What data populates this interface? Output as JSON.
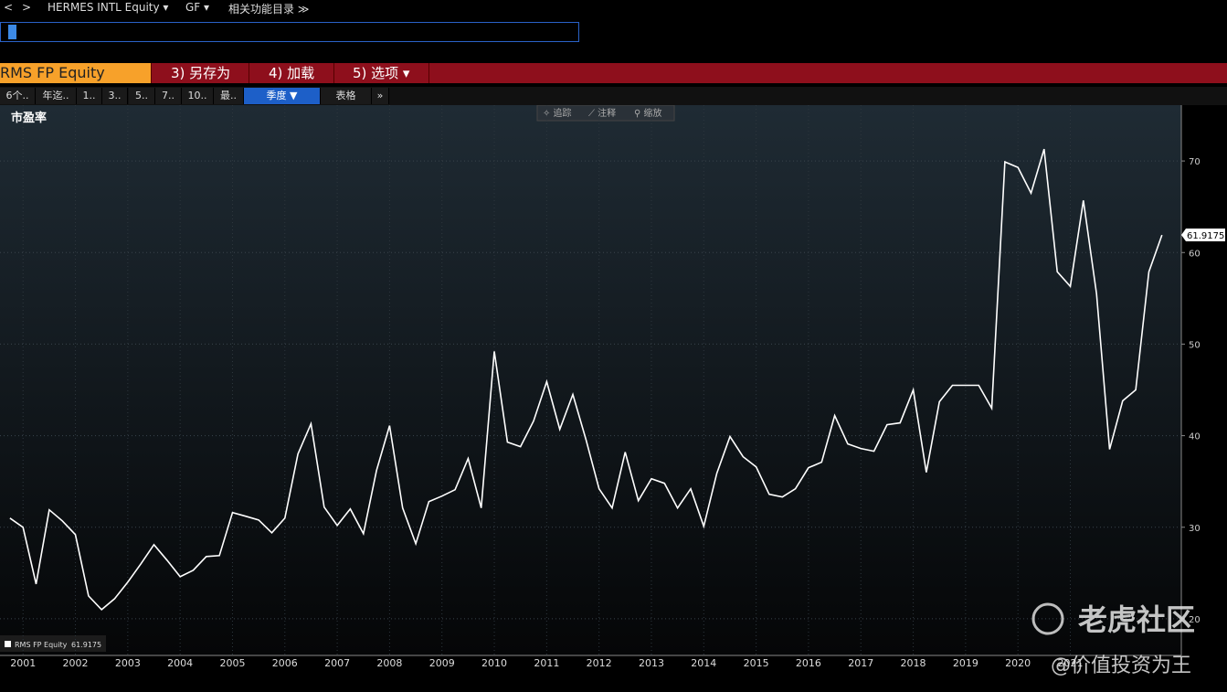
{
  "topbar": {
    "back": "<",
    "forward": ">",
    "security": "HERMES INTL Equity ▾",
    "function": "GF ▾",
    "menu": "相关功能目录 ≫"
  },
  "tabs": {
    "ticker": "RMS FP Equity",
    "items": [
      "3) 另存为",
      "4) 加载",
      "5) 选项 ▾"
    ]
  },
  "periods": {
    "items": [
      "6个..",
      "年迄..",
      "1..",
      "3..",
      "5..",
      "7..",
      "10..",
      "最.."
    ],
    "frequency": "季度 ▼",
    "table": "表格",
    "more": "»"
  },
  "tools": [
    "✧ 追踪",
    "⟋ 注释",
    "⚲ 缩放"
  ],
  "watermark": {
    "logo": "老虎社区",
    "author": "@价值投资为王"
  },
  "chart_data": {
    "type": "line",
    "title": "市盈率",
    "x": [
      2001.25,
      2001.5,
      2001.75,
      2002,
      2002.25,
      2002.5,
      2002.75,
      2003,
      2003.25,
      2003.5,
      2003.75,
      2004,
      2004.25,
      2004.5,
      2004.75,
      2005,
      2005.25,
      2005.5,
      2005.75,
      2006,
      2006.25,
      2006.5,
      2006.75,
      2007,
      2007.25,
      2007.5,
      2007.75,
      2008,
      2008.25,
      2008.5,
      2008.75,
      2009,
      2009.25,
      2009.5,
      2009.75,
      2010,
      2010.25,
      2010.5,
      2010.75,
      2011,
      2011.25,
      2011.5,
      2011.75,
      2012,
      2012.25,
      2012.5,
      2012.75,
      2013,
      2013.25,
      2013.5,
      2013.75,
      2014,
      2014.25,
      2014.5,
      2014.75,
      2015,
      2015.25,
      2015.5,
      2015.75,
      2016,
      2016.25,
      2016.5,
      2016.75,
      2017,
      2017.25,
      2017.5,
      2017.75,
      2018,
      2018.25,
      2018.5,
      2018.75,
      2019,
      2019.25,
      2019.5,
      2019.75,
      2020,
      2020.25,
      2020.5,
      2020.75,
      2021,
      2021.25,
      2021.5,
      2021.75,
      2022,
      2022.25,
      2022.5,
      2022.75,
      2023,
      2023.25
    ],
    "series": [
      {
        "name": "RMS FP Equity",
        "color": "#ffffff",
        "values": [
          31,
          30,
          23.8,
          31.9,
          30.7,
          29.2,
          22.5,
          21,
          22.2,
          24,
          26,
          28.1,
          26.4,
          24.6,
          25.3,
          26.8,
          26.9,
          31.6,
          31.2,
          30.8,
          29.4,
          31,
          38,
          41.3,
          32.2,
          30.2,
          32,
          29.3,
          36.2,
          41.1,
          32.1,
          28.2,
          32.8,
          33.4,
          34.1,
          37.5,
          32.1,
          49.2,
          39.3,
          38.8,
          41.6,
          45.9,
          40.7,
          44.5,
          39.6,
          34.2,
          32.1,
          38.2,
          32.9,
          35.3,
          34.8,
          32.1,
          34.2,
          30.1,
          35.9,
          39.9,
          37.7,
          36.6,
          33.6,
          33.3,
          34.2,
          36.5,
          37.1,
          42.2,
          39.1,
          38.6,
          38.3,
          41.2,
          41.4,
          45,
          36,
          43.7,
          45.5,
          45.5,
          45.5,
          43,
          69.9,
          69.3,
          66.5,
          71.3,
          57.9,
          56.3,
          65.7,
          55.5,
          38.5,
          43.8,
          45,
          57.9,
          61.9175
        ]
      }
    ],
    "last_value": 61.9175,
    "xlim": [
      2001.06,
      2023.62
    ],
    "xticks": [
      {
        "value": 2001.5,
        "label": "2001"
      },
      {
        "value": 2002.5,
        "label": "2002"
      },
      {
        "value": 2003.5,
        "label": "2003"
      },
      {
        "value": 2004.5,
        "label": "2004"
      },
      {
        "value": 2005.5,
        "label": "2005"
      },
      {
        "value": 2006.5,
        "label": "2006"
      },
      {
        "value": 2007.5,
        "label": "2007"
      },
      {
        "value": 2008.5,
        "label": "2008"
      },
      {
        "value": 2009.5,
        "label": "2009"
      },
      {
        "value": 2010.5,
        "label": "2010"
      },
      {
        "value": 2011.5,
        "label": "2011"
      },
      {
        "value": 2012.5,
        "label": "2012"
      },
      {
        "value": 2013.5,
        "label": "2013"
      },
      {
        "value": 2014.5,
        "label": "2014"
      },
      {
        "value": 2015.5,
        "label": "2015"
      },
      {
        "value": 2016.5,
        "label": "2016"
      },
      {
        "value": 2017.5,
        "label": "2017"
      },
      {
        "value": 2018.5,
        "label": "2018"
      },
      {
        "value": 2019.5,
        "label": "2019"
      },
      {
        "value": 2020.5,
        "label": "2020"
      },
      {
        "value": 2021.5,
        "label": "2021"
      }
    ],
    "ylim": [
      16.0,
      76.1
    ],
    "yticks": [
      20,
      30,
      40,
      50,
      60,
      70
    ],
    "grid": true
  }
}
